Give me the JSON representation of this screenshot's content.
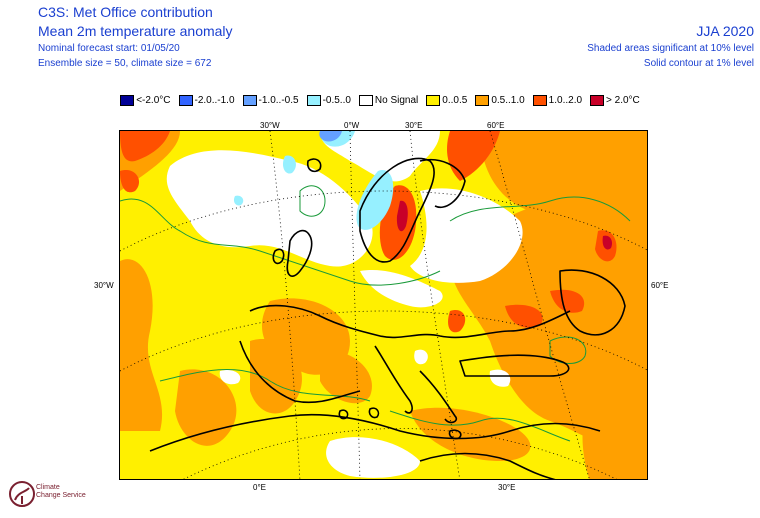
{
  "header": {
    "title": "C3S: Met Office contribution",
    "subtitle": "Mean 2m temperature anomaly",
    "forecast_start": "Nominal forecast start: 01/05/20",
    "ensemble": "Ensemble size = 50, climate size = 672",
    "season": "JJA 2020",
    "significance_shaded": "Shaded areas significant at 10% level",
    "significance_contour": "Solid contour at 1% level"
  },
  "legend": [
    {
      "label": "<-2.0°C",
      "color": "#000096"
    },
    {
      "label": "-2.0..-1.0",
      "color": "#3264ff"
    },
    {
      "label": "-1.0..-0.5",
      "color": "#64a0ff"
    },
    {
      "label": "-0.5..0",
      "color": "#96f0ff"
    },
    {
      "label": "No Signal",
      "color": "#ffffff"
    },
    {
      "label": "0..0.5",
      "color": "#fff000"
    },
    {
      "label": "0.5..1.0",
      "color": "#ffa000"
    },
    {
      "label": "1.0..2.0",
      "color": "#ff5000"
    },
    {
      "label": "> 2.0°C",
      "color": "#c80028"
    }
  ],
  "map_labels": {
    "top": [
      "30°W",
      "0°W",
      "30°E",
      "60°E"
    ],
    "left": "30°W",
    "right": "60°E",
    "bottom": [
      "0°E",
      "30°E"
    ]
  },
  "logo": {
    "line1": "Climate",
    "line2": "Change Service"
  }
}
